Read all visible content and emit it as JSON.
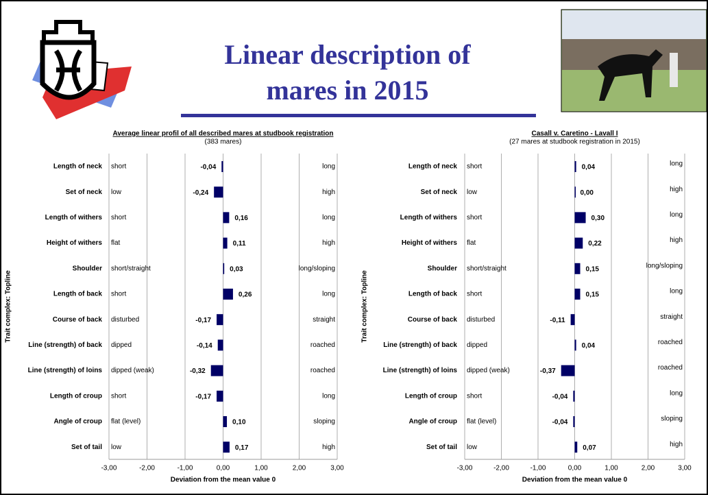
{
  "header": {
    "title": "Linear description of mares in 2015"
  },
  "chart_data": [
    {
      "type": "bar",
      "horizontal": true,
      "title": "Average linear profil of all described mares at studbook registration",
      "subtitle": "(383 mares)",
      "y_label": "Trait complex: Topline",
      "x_label": "Deviation from the mean value 0",
      "categories": [
        "Length of neck",
        "Set of neck",
        "Length of withers",
        "Height of withers",
        "Shoulder",
        "Length of back",
        "Course of back",
        "Line (strength) of back",
        "Line (strength) of loins",
        "Length of croup",
        "Angle of croup",
        "Set of tail"
      ],
      "left_labels": [
        "short",
        "low",
        "short",
        "flat",
        "short/straight",
        "short",
        "disturbed",
        "dipped",
        "dipped (weak)",
        "short",
        "flat (level)",
        "low"
      ],
      "right_labels": [
        "long",
        "high",
        "long",
        "high",
        "long/sloping",
        "long",
        "straight",
        "roached",
        "roached",
        "long",
        "sloping",
        "high"
      ],
      "values": [
        -0.04,
        -0.24,
        0.16,
        0.11,
        0.03,
        0.26,
        -0.17,
        -0.14,
        -0.32,
        -0.17,
        0.1,
        0.17
      ],
      "value_labels": [
        "-0,04",
        "-0,24",
        "0,16",
        "0,11",
        "0,03",
        "0,26",
        "-0,17",
        "-0,14",
        "-0,32",
        "-0,17",
        "0,10",
        "0,17"
      ],
      "color": "#000066",
      "xlim": [
        -3,
        3
      ],
      "xticks": [
        {
          "value": -3,
          "label": "-3,00"
        },
        {
          "value": -2,
          "label": "-2,00"
        },
        {
          "value": -1,
          "label": "-1,00"
        },
        {
          "value": 0,
          "label": "0,00"
        },
        {
          "value": 1,
          "label": "1,00"
        },
        {
          "value": 2,
          "label": "2,00"
        },
        {
          "value": 3,
          "label": "3,00"
        }
      ],
      "grid": true
    },
    {
      "type": "bar",
      "horizontal": true,
      "title": "Casall v. Caretino - Lavall I",
      "subtitle": "(27 mares at studbook registration in 2015)",
      "y_label": "Trait complex: Topline",
      "x_label": "Deviation from the mean value 0",
      "categories": [
        "Length of neck",
        "Set of neck",
        "Length of withers",
        "Height of withers",
        "Shoulder",
        "Length of back",
        "Course of back",
        "Line (strength) of back",
        "Line (strength) of loins",
        "Length of croup",
        "Angle of croup",
        "Set of tail"
      ],
      "left_labels": [
        "short",
        "low",
        "short",
        "flat",
        "short/straight",
        "short",
        "disturbed",
        "dipped",
        "dipped (weak)",
        "short",
        "flat (level)",
        "low"
      ],
      "right_labels": [
        "long",
        "high",
        "long",
        "high",
        "long/sloping",
        "long",
        "straight",
        "roached",
        "roached",
        "long",
        "sloping",
        "high"
      ],
      "values": [
        0.04,
        0.0,
        0.3,
        0.22,
        0.15,
        0.15,
        -0.11,
        0.04,
        -0.37,
        -0.04,
        -0.04,
        0.07
      ],
      "value_labels": [
        "0,04",
        "0,00",
        "0,30",
        "0,22",
        "0,15",
        "0,15",
        "-0,11",
        "0,04",
        "-0,37",
        "-0,04",
        "-0,04",
        "0,07"
      ],
      "color": "#000066",
      "xlim": [
        -3,
        3
      ],
      "xticks": [
        {
          "value": -3,
          "label": "-3,00"
        },
        {
          "value": -2,
          "label": "-2,00"
        },
        {
          "value": -1,
          "label": "-1,00"
        },
        {
          "value": 0,
          "label": "0,00"
        },
        {
          "value": 1,
          "label": "1,00"
        },
        {
          "value": 2,
          "label": "2,00"
        },
        {
          "value": 3,
          "label": "3,00"
        }
      ],
      "grid": true
    }
  ]
}
